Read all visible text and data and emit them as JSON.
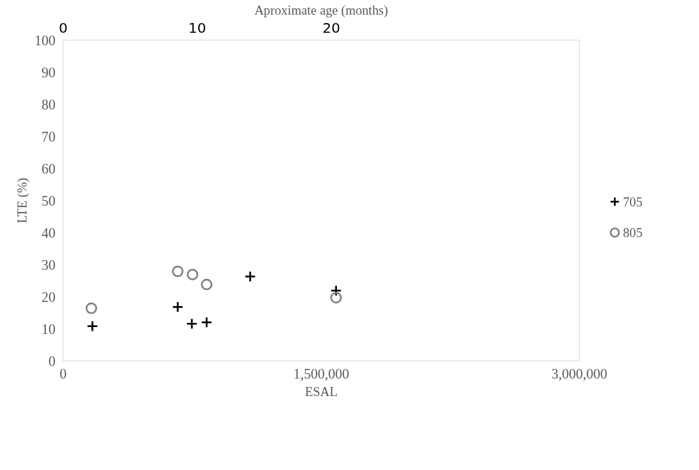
{
  "chart_data": {
    "type": "scatter",
    "xlabel": "ESAL",
    "ylabel": "LTE (%)",
    "x2label": "Aproximate age (months)",
    "xlim": [
      0,
      3000000
    ],
    "xticks": [
      {
        "value": 0,
        "label": "0"
      },
      {
        "value": 1500000,
        "label": "1,500,000"
      },
      {
        "value": 3000000,
        "label": "3,000,000"
      }
    ],
    "ylim": [
      0,
      100
    ],
    "yticks": [
      0,
      10,
      20,
      30,
      40,
      50,
      60,
      70,
      80,
      90,
      100
    ],
    "x2lim": [
      0,
      38.5
    ],
    "x2ticks": [
      0,
      10,
      20
    ],
    "grid": false,
    "legend": "right",
    "series": [
      {
        "name": "705",
        "color": "#000000",
        "marker": "cross",
        "x": [
          170000,
          666000,
          748000,
          834000,
          1087000,
          1586000
        ],
        "values": [
          10.8,
          16.8,
          11.6,
          12.0,
          26.3,
          21.9
        ]
      },
      {
        "name": "805",
        "color": "#808080",
        "marker": "circle",
        "x": [
          164000,
          666000,
          752000,
          834000,
          1586000
        ],
        "values": [
          16.4,
          27.9,
          26.9,
          23.8,
          19.7
        ]
      }
    ]
  }
}
